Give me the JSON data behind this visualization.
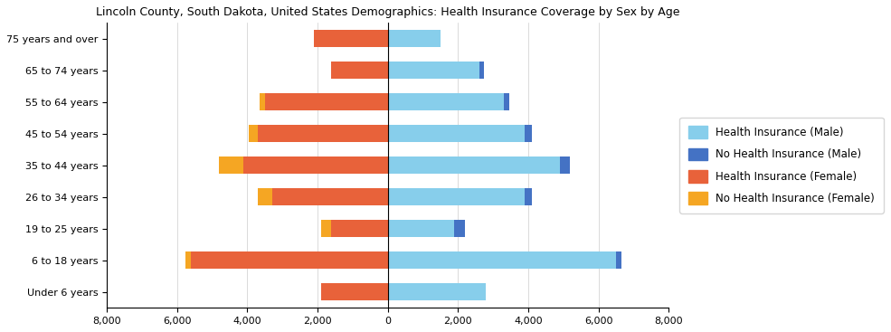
{
  "title": "Lincoln County, South Dakota, United States Demographics: Health Insurance Coverage by Sex by Age",
  "age_groups": [
    "Under 6 years",
    "6 to 18 years",
    "19 to 25 years",
    "26 to 34 years",
    "35 to 44 years",
    "45 to 54 years",
    "55 to 64 years",
    "65 to 74 years",
    "75 years and over"
  ],
  "health_ins_male": [
    2800,
    6500,
    1900,
    3900,
    4900,
    3900,
    3300,
    2600,
    1500
  ],
  "no_health_ins_male": [
    0,
    150,
    300,
    200,
    300,
    200,
    150,
    150,
    0
  ],
  "health_ins_female": [
    1900,
    5600,
    1600,
    3300,
    4100,
    3700,
    3500,
    1600,
    2100
  ],
  "no_health_ins_female": [
    0,
    150,
    300,
    400,
    700,
    250,
    150,
    0,
    0
  ],
  "color_health_ins_male": "#87CEEB",
  "color_no_health_ins_male": "#4472C4",
  "color_health_ins_female": "#E8623A",
  "color_no_health_ins_female": "#F5A623",
  "xlim": 8000,
  "xtick_step": 2000,
  "bar_height": 0.55,
  "title_fontsize": 9,
  "tick_fontsize": 8,
  "legend_labels": [
    "Health Insurance (Male)",
    "No Health Insurance (Male)",
    "Health Insurance (Female)",
    "No Health Insurance (Female)"
  ]
}
